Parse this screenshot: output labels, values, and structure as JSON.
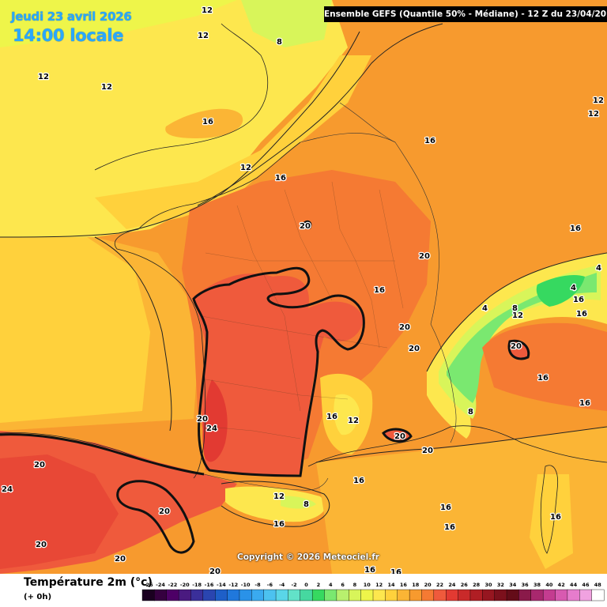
{
  "header": {
    "date": "Jeudi 23 avril 2026",
    "time": "14:00 locale",
    "run": "Ensemble GEFS  (Quantile 50% - Médiane) - 12 Z du 23/04/2026"
  },
  "copyright": "Copyright © 2026 Meteociel.fr",
  "footer": {
    "variable": "Température 2m (°c)",
    "lead": "(+ 0h)"
  },
  "colors": {
    "t2": "#36d960",
    "t4": "#7ae870",
    "t6": "#b8f06e",
    "t8": "#d8f55a",
    "t10": "#eef54a",
    "t12": "#fde74e",
    "t14": "#ffd13c",
    "t16": "#fbb535",
    "t18": "#f79a2e",
    "t20": "#f57a33",
    "t22": "#ef5a3c",
    "t24": "#e23a32"
  },
  "colorbar": {
    "ticks": [
      "-26",
      "-24",
      "-22",
      "-20",
      "-18",
      "-16",
      "-14",
      "-12",
      "-10",
      "-8",
      "-6",
      "-4",
      "-2",
      "0",
      "2",
      "4",
      "6",
      "8",
      "10",
      "12",
      "14",
      "16",
      "18",
      "20",
      "22",
      "24",
      "26",
      "28",
      "30",
      "32",
      "34",
      "36",
      "38",
      "40",
      "42",
      "44",
      "46",
      "48"
    ],
    "colors": [
      "#1a0020",
      "#35003f",
      "#4d0066",
      "#4a1a80",
      "#3a2f9a",
      "#2a45b0",
      "#1e5fc8",
      "#2078dc",
      "#2a92e8",
      "#3aaaf0",
      "#4cc2f0",
      "#5ad6e8",
      "#62e2c8",
      "#46d8a0",
      "#36d960",
      "#7ae870",
      "#b8f06e",
      "#d8f55a",
      "#eef54a",
      "#fde74e",
      "#ffd13c",
      "#fbb535",
      "#f79a2e",
      "#f57a33",
      "#ef5a3c",
      "#e23a32",
      "#c92a2a",
      "#b01e24",
      "#961620",
      "#7c101c",
      "#640c18",
      "#8a1a4a",
      "#a8286e",
      "#c43c90",
      "#d85ab0",
      "#e67ccc",
      "#f0a2e0",
      "#ffffff"
    ]
  },
  "isotherm_labels": [
    {
      "text": "12"
    },
    {
      "text": "12"
    },
    {
      "text": "8"
    },
    {
      "text": "12"
    },
    {
      "text": "12"
    },
    {
      "text": "16"
    },
    {
      "text": "12"
    },
    {
      "text": "12"
    },
    {
      "text": "16"
    },
    {
      "text": "12"
    },
    {
      "text": "16"
    },
    {
      "text": "20"
    },
    {
      "text": "20"
    },
    {
      "text": "16"
    },
    {
      "text": "16"
    },
    {
      "text": "4"
    },
    {
      "text": "4"
    },
    {
      "text": "8"
    },
    {
      "text": "12"
    },
    {
      "text": "16"
    },
    {
      "text": "16"
    },
    {
      "text": "4"
    },
    {
      "text": "20"
    },
    {
      "text": "20"
    },
    {
      "text": "20"
    },
    {
      "text": "16"
    },
    {
      "text": "16"
    },
    {
      "text": "20"
    },
    {
      "text": "24"
    },
    {
      "text": "16"
    },
    {
      "text": "12"
    },
    {
      "text": "8"
    },
    {
      "text": "20"
    },
    {
      "text": "20"
    },
    {
      "text": "20"
    },
    {
      "text": "24"
    },
    {
      "text": "16"
    },
    {
      "text": "12"
    },
    {
      "text": "8"
    },
    {
      "text": "16"
    },
    {
      "text": "16"
    },
    {
      "text": "16"
    },
    {
      "text": "16"
    },
    {
      "text": "20"
    },
    {
      "text": "20"
    },
    {
      "text": "20"
    },
    {
      "text": "20"
    },
    {
      "text": "16"
    },
    {
      "text": "16"
    }
  ]
}
